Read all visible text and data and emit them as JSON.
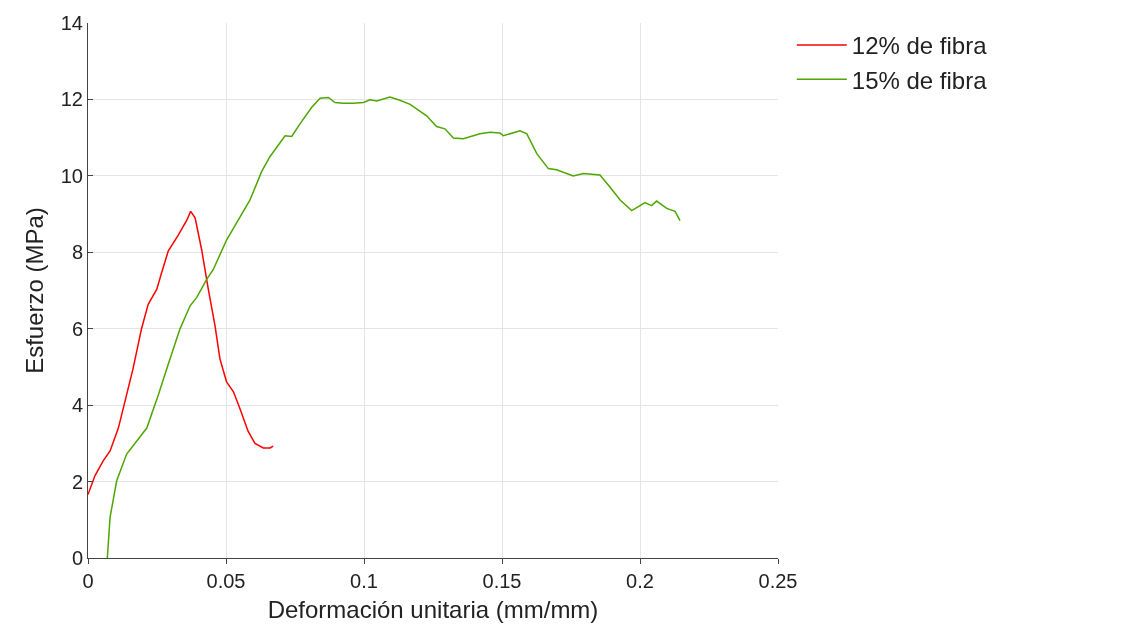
{
  "chart_data": {
    "type": "line",
    "xlabel": "Deformación unitaria (mm/mm)",
    "ylabel": "Esfuerzo (MPa)",
    "xlim": [
      0,
      0.25
    ],
    "xticks": [
      0,
      0.05,
      0.1,
      0.15,
      0.2,
      0.25
    ],
    "ylim": [
      0,
      14
    ],
    "yticks": [
      0,
      2,
      4,
      6,
      8,
      10,
      12,
      14
    ],
    "grid": true,
    "legend": "top right",
    "marker": "none",
    "line_style": "solid",
    "series": [
      {
        "name": "12% de fibra",
        "color": "#ff0000",
        "x": [
          0,
          0.0025,
          0.0055,
          0.008,
          0.011,
          0.0134,
          0.0163,
          0.0194,
          0.0218,
          0.0249,
          0.0267,
          0.0291,
          0.0327,
          0.0358,
          0.0372,
          0.0388,
          0.0412,
          0.0436,
          0.046,
          0.0478,
          0.0502,
          0.0527,
          0.055,
          0.058,
          0.0605,
          0.0635,
          0.066,
          0.0671
        ],
        "values": [
          1.66,
          2.15,
          2.54,
          2.8,
          3.4,
          4.1,
          4.95,
          6.0,
          6.64,
          7.03,
          7.47,
          8.04,
          8.45,
          8.84,
          9.07,
          8.9,
          8.06,
          7.03,
          6.09,
          5.21,
          4.61,
          4.35,
          3.92,
          3.32,
          3.0,
          2.88,
          2.88,
          2.93
        ]
      },
      {
        "name": "15% de fibra",
        "color": "#4fa600",
        "x": [
          0.007,
          0.008,
          0.0104,
          0.014,
          0.0213,
          0.0255,
          0.0297,
          0.0333,
          0.037,
          0.0394,
          0.043,
          0.0454,
          0.0502,
          0.0587,
          0.0629,
          0.0659,
          0.0714,
          0.0738,
          0.0768,
          0.081,
          0.0841,
          0.0871,
          0.0895,
          0.0925,
          0.0961,
          0.0998,
          0.1022,
          0.1046,
          0.1094,
          0.113,
          0.1167,
          0.1227,
          0.1263,
          0.1293,
          0.1324,
          0.136,
          0.142,
          0.1457,
          0.1493,
          0.1505,
          0.1565,
          0.159,
          0.1626,
          0.1668,
          0.1698,
          0.1758,
          0.1795,
          0.1855,
          0.1891,
          0.1928,
          0.197,
          0.2018,
          0.2042,
          0.206,
          0.2097,
          0.2127,
          0.2145
        ],
        "values": [
          0,
          1.07,
          2.02,
          2.72,
          3.4,
          4.27,
          5.21,
          5.99,
          6.6,
          6.82,
          7.29,
          7.55,
          8.32,
          9.37,
          10.11,
          10.5,
          11.05,
          11.03,
          11.36,
          11.79,
          12.03,
          12.05,
          11.92,
          11.9,
          11.9,
          11.92,
          11.99,
          11.96,
          12.06,
          11.98,
          11.87,
          11.57,
          11.29,
          11.23,
          10.99,
          10.97,
          11.1,
          11.14,
          11.12,
          11.05,
          11.18,
          11.1,
          10.58,
          10.19,
          10.16,
          10.0,
          10.06,
          10.02,
          9.71,
          9.37,
          9.09,
          9.3,
          9.22,
          9.34,
          9.15,
          9.07,
          8.83
        ]
      }
    ]
  }
}
